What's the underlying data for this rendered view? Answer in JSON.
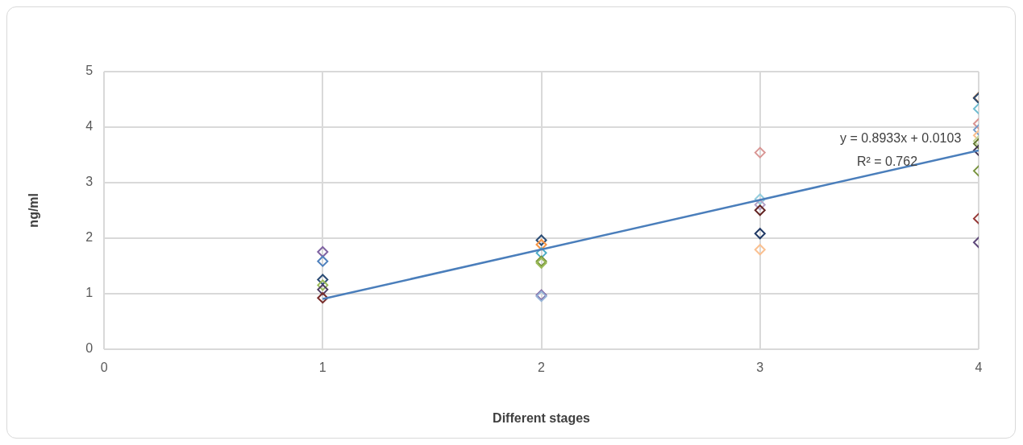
{
  "chart_data": {
    "type": "scatter",
    "xlabel": "Different stages",
    "ylabel": "ng/ml",
    "xlim": [
      0,
      4
    ],
    "xticks": [
      0,
      1,
      2,
      3,
      4
    ],
    "ylim": [
      0,
      5
    ],
    "yticks": [
      0,
      1,
      2,
      3,
      4,
      5
    ],
    "grid": true,
    "legend": false,
    "marker": "diamond",
    "annotations": [
      "y = 0.8933x + 0.0103",
      "R² = 0.762"
    ],
    "series": [
      {
        "x": [
          1,
          1,
          1,
          1,
          1,
          1,
          2,
          2,
          2,
          2,
          2,
          2,
          2,
          3,
          3,
          3,
          3,
          3,
          3,
          4,
          4,
          4,
          4,
          4,
          4,
          4,
          4,
          4,
          4,
          4,
          4
        ],
        "values": [
          1.75,
          1.58,
          1.25,
          1.15,
          1.07,
          0.92,
          1.96,
          1.88,
          1.73,
          1.58,
          1.55,
          0.97,
          0.95,
          3.54,
          2.7,
          2.6,
          2.5,
          2.08,
          1.79,
          4.53,
          4.52,
          4.33,
          4.06,
          3.95,
          3.85,
          3.75,
          3.7,
          3.58,
          3.21,
          2.35,
          1.92
        ],
        "colors": [
          "#8064a2",
          "#4f81bd",
          "#2c4d75",
          "#9bbb59",
          "#4d3b62",
          "#772c2a",
          "#2c4d75",
          "#f79646",
          "#4bacc6",
          "#77933c",
          "#9bbb59",
          "#8064a2",
          "#95b3d7",
          "#d99694",
          "#93cddd",
          "#b3a2c7",
          "#632423",
          "#1f3864",
          "#fac090",
          "#984807",
          "#2c4d75",
          "#6fbdd1",
          "#d99694",
          "#729aca",
          "#fac090",
          "#c3d69b",
          "#5f7530",
          "#3f3151",
          "#77933c",
          "#953735",
          "#604a7b"
        ]
      },
      {
        "type": "line",
        "x": [
          1,
          4
        ],
        "values": [
          0.9,
          3.58
        ],
        "color": "#4a7ebb",
        "marker": "none"
      }
    ]
  }
}
